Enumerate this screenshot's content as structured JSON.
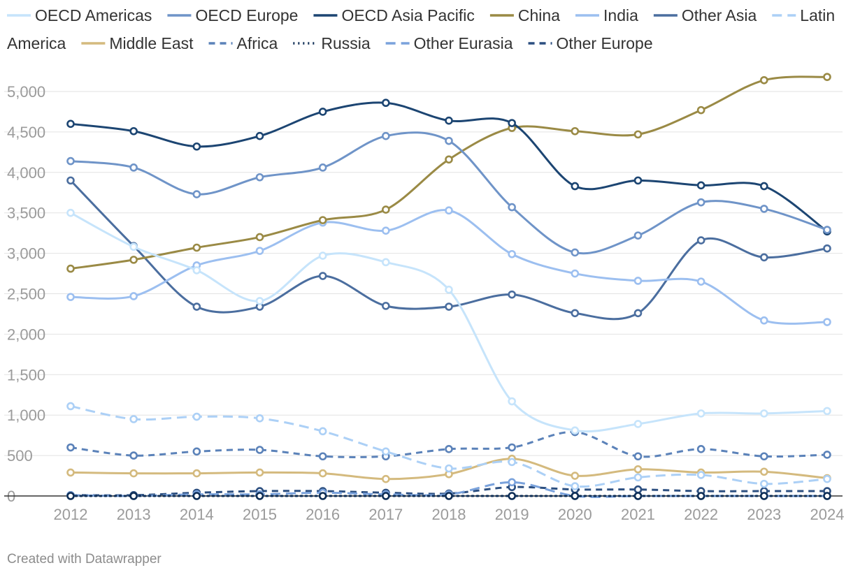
{
  "chart_data": {
    "type": "line",
    "title": "",
    "xlabel": "",
    "ylabel": "",
    "x": [
      "2012",
      "2013",
      "2014",
      "2015",
      "2016",
      "2017",
      "2018",
      "2019",
      "2020",
      "2021",
      "2022",
      "2023",
      "2024"
    ],
    "ylim": [
      0,
      5200
    ],
    "yticks": [
      0,
      500,
      1000,
      1500,
      2000,
      2500,
      3000,
      3500,
      4000,
      4500,
      5000
    ],
    "ytick_labels": [
      "0",
      "500",
      "1,000",
      "1,500",
      "2,000",
      "2,500",
      "3,000",
      "3,500",
      "4,000",
      "4,500",
      "5,000"
    ],
    "grid": true,
    "legend_position": "top",
    "series": [
      {
        "name": "OECD Americas",
        "color": "#c6e4fb",
        "dash": "solid",
        "values": [
          3500,
          3080,
          2790,
          2410,
          2970,
          2890,
          2550,
          1170,
          810,
          890,
          1020,
          1020,
          1050
        ]
      },
      {
        "name": "OECD Europe",
        "color": "#6f94c8",
        "dash": "solid",
        "values": [
          4140,
          4060,
          3730,
          3940,
          4060,
          4450,
          4390,
          3570,
          3010,
          3220,
          3630,
          3550,
          3290
        ]
      },
      {
        "name": "OECD Asia Pacific",
        "color": "#1c4572",
        "dash": "solid",
        "values": [
          4600,
          4510,
          4320,
          4450,
          4750,
          4860,
          4640,
          4610,
          3830,
          3900,
          3840,
          3830,
          3270
        ]
      },
      {
        "name": "China",
        "color": "#9a8a45",
        "dash": "solid",
        "values": [
          2810,
          2920,
          3070,
          3200,
          3410,
          3540,
          4160,
          4550,
          4510,
          4470,
          4770,
          5140,
          5180
        ]
      },
      {
        "name": "India",
        "color": "#9cbff0",
        "dash": "solid",
        "values": [
          2460,
          2470,
          2850,
          3030,
          3380,
          3280,
          3530,
          2990,
          2750,
          2660,
          2650,
          2170,
          2150
        ]
      },
      {
        "name": "Other Asia",
        "color": "#4b6e9f",
        "dash": "solid",
        "values": [
          3900,
          3090,
          2340,
          2340,
          2720,
          2350,
          2340,
          2490,
          2260,
          2260,
          3160,
          2950,
          3060
        ]
      },
      {
        "name": "Latin America",
        "color": "#acd0f6",
        "dash": "longdash",
        "values": [
          1110,
          950,
          980,
          960,
          800,
          550,
          340,
          420,
          120,
          230,
          260,
          150,
          210
        ]
      },
      {
        "name": "Middle East",
        "color": "#d4ba7e",
        "dash": "solid",
        "values": [
          290,
          280,
          280,
          290,
          280,
          210,
          270,
          460,
          250,
          330,
          290,
          300,
          220
        ]
      },
      {
        "name": "Africa",
        "color": "#5b82b9",
        "dash": "dash",
        "values": [
          600,
          500,
          550,
          570,
          490,
          490,
          580,
          600,
          790,
          490,
          580,
          490,
          510
        ]
      },
      {
        "name": "Russia",
        "color": "#0d2d55",
        "dash": "dot",
        "values": [
          0,
          0,
          0,
          0,
          0,
          0,
          0,
          0,
          0,
          0,
          0,
          0,
          0
        ]
      },
      {
        "name": "Other Eurasia",
        "color": "#7aa2dc",
        "dash": "longdash",
        "values": [
          10,
          0,
          20,
          20,
          40,
          20,
          20,
          170,
          0,
          0,
          0,
          0,
          0
        ]
      },
      {
        "name": "Other Europe",
        "color": "#2c4f80",
        "dash": "dash",
        "values": [
          10,
          10,
          40,
          60,
          60,
          40,
          30,
          110,
          80,
          80,
          60,
          60,
          60
        ]
      }
    ]
  },
  "footer": {
    "credit": "Created with Datawrapper"
  }
}
